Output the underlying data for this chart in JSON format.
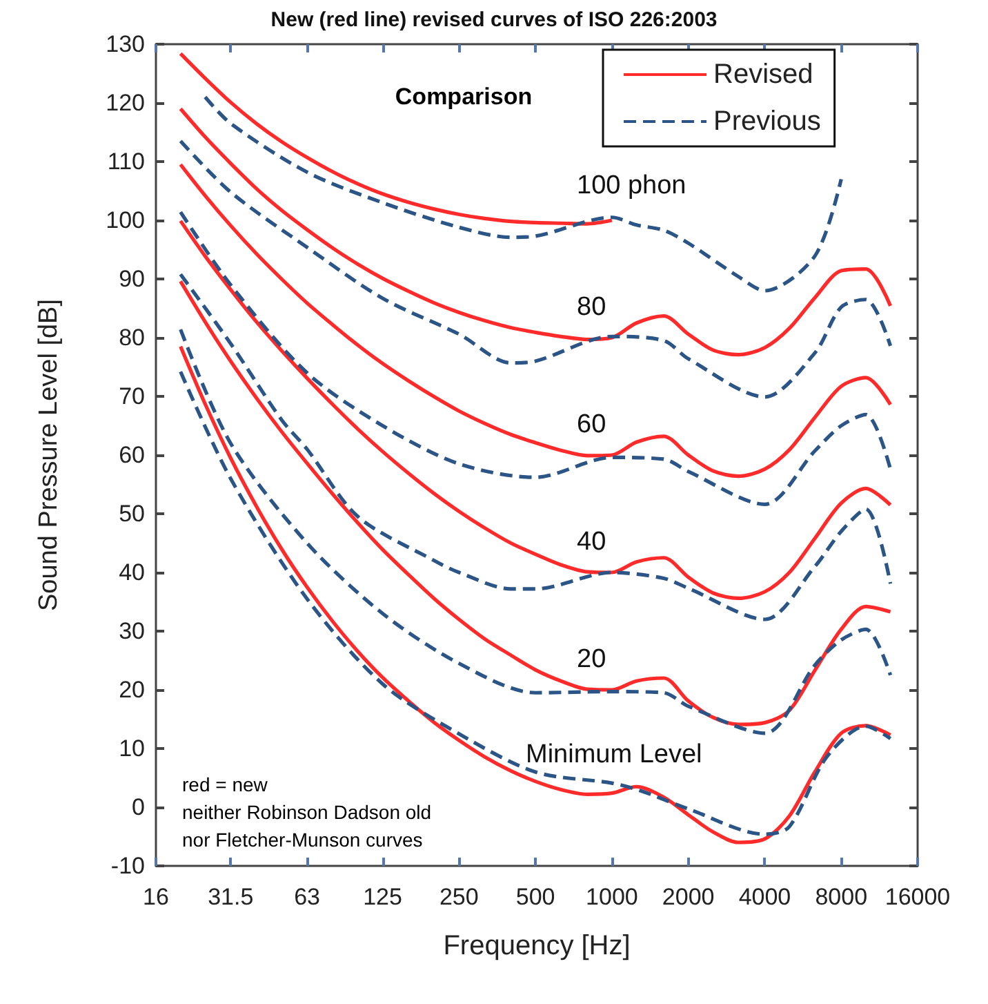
{
  "chart_data": {
    "type": "line",
    "title": "New (red line) revised curves of ISO 226:2003",
    "xlabel": "Frequency [Hz]",
    "ylabel": "Sound Pressure Level [dB]",
    "x": [
      20,
      25,
      31.5,
      40,
      50,
      63,
      80,
      100,
      125,
      160,
      200,
      250,
      315,
      400,
      500,
      630,
      800,
      1000,
      1250,
      1600,
      2000,
      2500,
      3150,
      4000,
      5000,
      6300,
      8000,
      10000,
      12500
    ],
    "series": [
      {
        "name": "Revised",
        "color": "#ff2a2a",
        "line_style": "solid",
        "x": [
          20,
          25,
          31.5,
          40,
          50,
          63,
          80,
          100,
          125,
          160,
          200,
          250,
          315,
          400,
          500,
          630,
          800,
          1000
        ],
        "values": [
          128.4,
          124.2,
          120.1,
          116.4,
          113.4,
          110.7,
          108.2,
          106.2,
          104.5,
          103.0,
          101.9,
          101.0,
          100.3,
          99.8,
          99.6,
          99.5,
          99.4,
          100.0
        ]
      },
      {
        "color": "#ff2a2a",
        "line_style": "solid",
        "values": [
          119.0,
          114.2,
          109.7,
          105.3,
          101.7,
          98.4,
          95.2,
          92.5,
          90.1,
          87.8,
          85.9,
          84.3,
          82.9,
          81.7,
          80.9,
          80.2,
          79.7,
          80.0,
          82.5,
          83.7,
          80.6,
          77.9,
          77.1,
          78.3,
          81.6,
          86.8,
          91.4,
          91.7,
          85.4
        ]
      },
      {
        "color": "#ff2a2a",
        "line_style": "solid",
        "values": [
          109.5,
          104.2,
          99.1,
          94.2,
          90.0,
          85.9,
          82.1,
          78.7,
          75.6,
          72.5,
          69.9,
          67.5,
          65.4,
          63.5,
          62.1,
          60.8,
          59.9,
          60.0,
          62.2,
          63.2,
          60.0,
          57.3,
          56.4,
          57.6,
          60.9,
          66.4,
          71.7,
          73.2,
          68.6
        ]
      },
      {
        "color": "#ff2a2a",
        "line_style": "solid",
        "values": [
          99.9,
          93.9,
          88.2,
          82.6,
          77.8,
          73.1,
          68.5,
          64.4,
          60.6,
          56.7,
          53.4,
          50.4,
          47.6,
          45.0,
          43.1,
          41.3,
          40.1,
          40.0,
          41.8,
          42.5,
          39.2,
          36.5,
          35.6,
          36.7,
          40.0,
          45.8,
          51.8,
          54.3,
          51.5
        ]
      },
      {
        "color": "#ff2a2a",
        "line_style": "solid",
        "values": [
          89.6,
          82.7,
          76.0,
          69.6,
          64.0,
          58.6,
          53.2,
          48.4,
          43.9,
          39.4,
          35.5,
          32.0,
          28.7,
          25.9,
          23.4,
          21.5,
          20.1,
          20.0,
          21.5,
          22.0,
          18.1,
          15.3,
          14.1,
          14.4,
          16.5,
          23.3,
          30.3,
          34.2,
          33.3
        ]
      },
      {
        "color": "#ff2a2a",
        "line_style": "solid",
        "values": [
          78.5,
          68.7,
          59.5,
          51.1,
          44.0,
          37.5,
          31.5,
          26.5,
          22.1,
          17.9,
          14.4,
          11.4,
          8.6,
          6.2,
          4.4,
          3.0,
          2.2,
          2.4,
          3.5,
          1.7,
          -1.3,
          -4.2,
          -6.0,
          -5.4,
          -1.5,
          6.0,
          12.6,
          13.9,
          12.3
        ]
      },
      {
        "name": "Previous",
        "color": "#2b5586",
        "line_style": "dashed",
        "x": [
          25,
          31.5,
          63,
          125,
          250,
          400,
          500,
          1000,
          1250,
          1600,
          2000,
          3150,
          4000,
          6300,
          8000
        ],
        "values": [
          121,
          116.5,
          108.2,
          103,
          98.8,
          97.1,
          97.3,
          100.5,
          99.2,
          98.3,
          96.1,
          90.4,
          88,
          93.9,
          107
        ]
      },
      {
        "color": "#2b5586",
        "line_style": "dashed",
        "x": [
          20,
          31.5,
          63,
          125,
          250,
          400,
          500,
          1000,
          1600,
          2000,
          4000,
          6300,
          8000,
          10000,
          12500
        ],
        "values": [
          113.5,
          104.8,
          95.4,
          86.7,
          80.6,
          75.7,
          76,
          80.2,
          79.5,
          76.4,
          69.9,
          77.4,
          85.2,
          86.5,
          78.6
        ]
      },
      {
        "color": "#2b5586",
        "line_style": "dashed",
        "x": [
          20,
          31.5,
          63,
          125,
          250,
          500,
          1000,
          1600,
          2000,
          4000,
          6300,
          8000,
          10000,
          12500
        ],
        "values": [
          101.4,
          89,
          74,
          65,
          58.5,
          56.2,
          59.6,
          59.3,
          57.2,
          51.6,
          60.7,
          65,
          66.9,
          57.6
        ]
      },
      {
        "color": "#2b5586",
        "line_style": "dashed",
        "x": [
          20,
          31.5,
          50,
          63,
          100,
          200,
          250,
          400,
          500,
          1000,
          1600,
          2000,
          4000,
          6300,
          8000,
          10000,
          12500
        ],
        "values": [
          90.8,
          79,
          66,
          61,
          49.5,
          42,
          40,
          37.2,
          37.2,
          40,
          39,
          37.3,
          32,
          41,
          47,
          50.8,
          38.1
        ]
      },
      {
        "color": "#2b5586",
        "line_style": "dashed",
        "x": [
          20,
          31.5,
          63,
          125,
          250,
          500,
          1000,
          1600,
          2000,
          4000,
          6300,
          8000,
          10000,
          12500
        ],
        "values": [
          81.4,
          62,
          45,
          33,
          24.5,
          19.5,
          19.7,
          19.5,
          17.2,
          12.6,
          24.2,
          28.5,
          30.3,
          22.5
        ]
      },
      {
        "color": "#2b5586",
        "line_style": "dashed",
        "x": [
          20,
          31.5,
          63,
          125,
          250,
          500,
          1000,
          1300,
          2000,
          4000,
          5000,
          7000,
          10000,
          12500
        ],
        "values": [
          74.2,
          56,
          35.5,
          21,
          12.5,
          6,
          4.1,
          2.8,
          -0.3,
          -4.6,
          -3.3,
          8.5,
          13.8,
          11.7
        ]
      }
    ],
    "xlim": [
      16,
      16000
    ],
    "xticks": [
      16,
      31.5,
      63,
      125,
      250,
      500,
      1000,
      2000,
      4000,
      8000,
      16000
    ],
    "ylim": [
      -10,
      130
    ],
    "yticks": [
      -10,
      0,
      10,
      20,
      30,
      40,
      50,
      60,
      70,
      80,
      90,
      100,
      110,
      120,
      130
    ],
    "grid": false,
    "legend": "top right",
    "marker": "none",
    "log": "x",
    "annotations": [
      "100 phon",
      "80",
      "60",
      "40",
      "20",
      "Minimum Level",
      "Comparison",
      "red = new",
      "neither Robinson Dadson old",
      "nor Fletcher-Munson curves"
    ]
  }
}
